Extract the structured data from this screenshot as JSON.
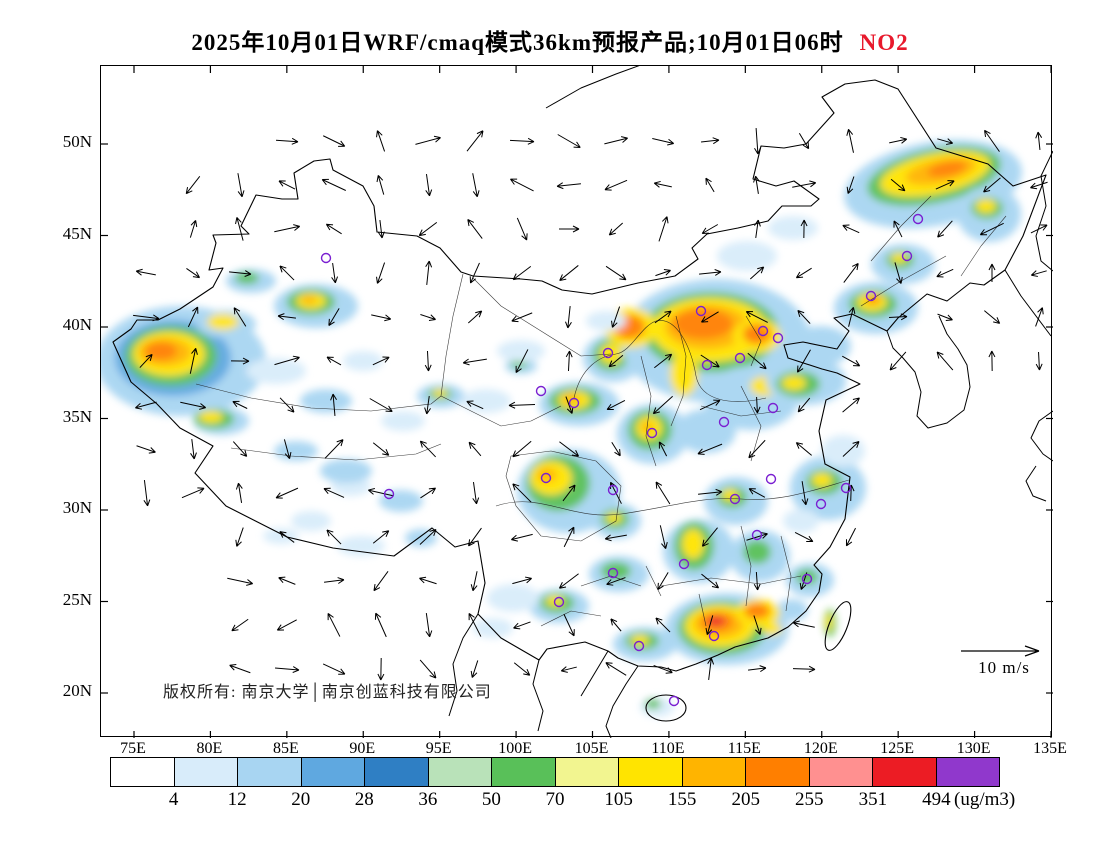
{
  "title": {
    "main": "2025年10月01日WRF/cmaq模式36km预报产品;10月01日06时",
    "pollutant": "NO2"
  },
  "map": {
    "copyright": "版权所有: 南京大学│南京创蓝科技有限公司",
    "wind_scale_label": "10 m/s",
    "lat_labels": [
      "50N",
      "45N",
      "40N",
      "35N",
      "30N",
      "25N",
      "20N"
    ],
    "lon_labels": [
      "75E",
      "80E",
      "85E",
      "90E",
      "95E",
      "100E",
      "105E",
      "110E",
      "115E",
      "120E",
      "125E",
      "130E",
      "135E"
    ]
  },
  "colorbar": {
    "unit_label": "(ug/m3)",
    "tick_values": [
      4,
      12,
      20,
      28,
      36,
      50,
      70,
      105,
      155,
      205,
      255,
      351,
      494
    ],
    "colors": [
      "#ffffff",
      "#d8ecfa",
      "#a8d5f2",
      "#5fa8e0",
      "#2f7fc4",
      "#b9e2b9",
      "#59c059",
      "#f2f590",
      "#ffe400",
      "#ffb400",
      "#ff7f00",
      "#ff9090",
      "#ec1c24",
      "#9038cc"
    ]
  },
  "colors": {
    "pollutant_accent": "#e8192c",
    "station_marker": "#7a1fd1",
    "outline": "#000000"
  }
}
